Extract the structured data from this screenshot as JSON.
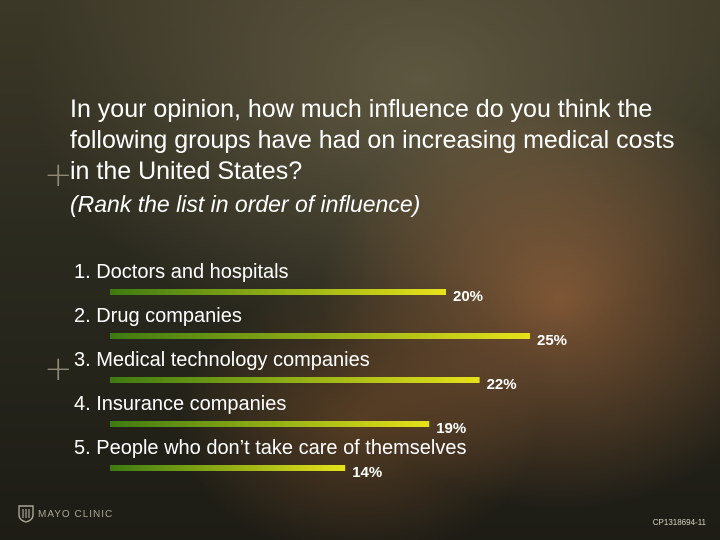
{
  "title": "In your opinion, how much influence do you think the following groups have had on increasing medical costs in the United States?",
  "subtitle": "(Rank the list in order of influence)",
  "logo_text": "MAYO CLINIC",
  "slide_code": "CP1318694-11",
  "colors": {
    "bar_dark": "#3e7a12",
    "bar_light": "#e6e21a",
    "label": "#ffffff"
  },
  "chart_data": {
    "type": "bar",
    "orientation": "horizontal",
    "categories": [
      "1.  Doctors and hospitals",
      "2.  Drug companies",
      "3.  Medical technology companies",
      "4.  Insurance companies",
      "5.  People who don’t take care of themselves"
    ],
    "values": [
      20,
      25,
      22,
      19,
      14
    ],
    "value_labels": [
      "20%",
      "25%",
      "22%",
      "19%",
      "14%"
    ],
    "unit": "%",
    "xlim": [
      0,
      25
    ],
    "grid": false,
    "legend": "none"
  }
}
